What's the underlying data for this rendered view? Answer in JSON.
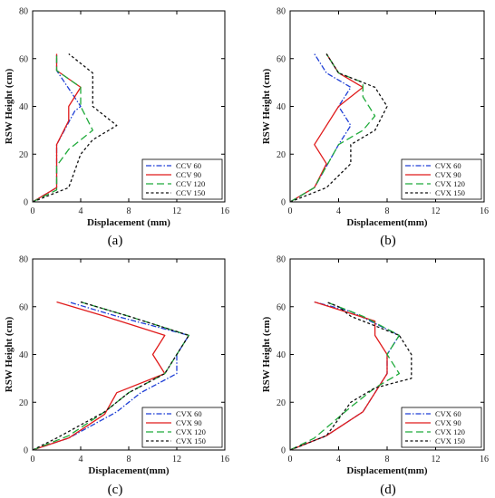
{
  "chart_data": [
    {
      "type": "line",
      "caption": "(a)",
      "xlabel": "Displacement (mm)",
      "ylabel": "RSW  Height (cm)",
      "xlim": [
        0,
        16
      ],
      "ylim": [
        0,
        80
      ],
      "xticks": [
        "0",
        "4",
        "8",
        "12",
        "16"
      ],
      "yticks": [
        "0",
        "20",
        "40",
        "60",
        "80"
      ],
      "legend_position": "bottom-right",
      "series": [
        {
          "name": "CCV 60",
          "color": "#1f3fd6",
          "dash": "dashdot",
          "points": [
            [
              0,
              0
            ],
            [
              2,
              6
            ],
            [
              2,
              24
            ],
            [
              3.5,
              38
            ],
            [
              4,
              40
            ],
            [
              2,
              55
            ],
            [
              2,
              62
            ]
          ]
        },
        {
          "name": "CCV 90",
          "color": "#e01b1b",
          "dash": "solid",
          "points": [
            [
              0,
              0
            ],
            [
              2,
              6
            ],
            [
              2,
              24
            ],
            [
              3,
              34
            ],
            [
              3,
              40
            ],
            [
              4,
              48
            ],
            [
              2,
              55
            ],
            [
              2,
              62
            ]
          ]
        },
        {
          "name": "CCV 120",
          "color": "#1faa3a",
          "dash": "longdash",
          "points": [
            [
              0,
              0
            ],
            [
              2,
              5
            ],
            [
              2,
              15
            ],
            [
              3,
              22
            ],
            [
              5,
              30
            ],
            [
              4,
              40
            ],
            [
              4,
              48
            ],
            [
              2,
              55
            ],
            [
              2,
              62
            ]
          ]
        },
        {
          "name": "CCV 150",
          "color": "#111111",
          "dash": "shortdash",
          "points": [
            [
              0,
              0
            ],
            [
              3,
              6
            ],
            [
              4,
              20
            ],
            [
              5,
              26
            ],
            [
              7,
              32
            ],
            [
              5,
              40
            ],
            [
              5,
              54
            ],
            [
              3,
              62
            ]
          ]
        }
      ]
    },
    {
      "type": "line",
      "caption": "(b)",
      "xlabel": "Displacement(mm)",
      "ylabel": "RSW  Height (cm)",
      "xlim": [
        0,
        16
      ],
      "ylim": [
        0,
        80
      ],
      "xticks": [
        "0",
        "4",
        "8",
        "12",
        "16"
      ],
      "yticks": [
        "0",
        "20",
        "40",
        "60",
        "80"
      ],
      "legend_position": "bottom-right",
      "series": [
        {
          "name": "CVX 60",
          "color": "#1f3fd6",
          "dash": "dashdot",
          "points": [
            [
              0,
              0
            ],
            [
              2,
              6
            ],
            [
              4,
              24
            ],
            [
              5,
              32
            ],
            [
              4,
              40
            ],
            [
              5,
              48
            ],
            [
              3,
              54
            ],
            [
              2,
              62
            ]
          ]
        },
        {
          "name": "CVX 90",
          "color": "#e01b1b",
          "dash": "solid",
          "points": [
            [
              0,
              0
            ],
            [
              2,
              6
            ],
            [
              3,
              16
            ],
            [
              2,
              24
            ],
            [
              4,
              40
            ],
            [
              6,
              48
            ],
            [
              4,
              54
            ],
            [
              3,
              62
            ]
          ]
        },
        {
          "name": "CVX 120",
          "color": "#1faa3a",
          "dash": "longdash",
          "points": [
            [
              0,
              0
            ],
            [
              2,
              6
            ],
            [
              4,
              24
            ],
            [
              6,
              30
            ],
            [
              7,
              36
            ],
            [
              6,
              44
            ],
            [
              6,
              50
            ],
            [
              4,
              54
            ],
            [
              3,
              62
            ]
          ]
        },
        {
          "name": "CVX 150",
          "color": "#111111",
          "dash": "shortdash",
          "points": [
            [
              0,
              0
            ],
            [
              3,
              6
            ],
            [
              5,
              16
            ],
            [
              5,
              24
            ],
            [
              7,
              30
            ],
            [
              8,
              40
            ],
            [
              7,
              48
            ],
            [
              4,
              54
            ],
            [
              3,
              62
            ]
          ]
        }
      ]
    },
    {
      "type": "line",
      "caption": "(c)",
      "xlabel": "Displacement(mm)",
      "ylabel": "RSW Height (cm)",
      "xlim": [
        0,
        16
      ],
      "ylim": [
        0,
        80
      ],
      "xticks": [
        "0",
        "4",
        "8",
        "12",
        "16"
      ],
      "yticks": [
        "0",
        "20",
        "40",
        "60",
        "80"
      ],
      "legend_position": "bottom-right",
      "series": [
        {
          "name": "CVX 60",
          "color": "#1f3fd6",
          "dash": "dashdot",
          "points": [
            [
              0,
              0
            ],
            [
              3,
              5
            ],
            [
              7,
              16
            ],
            [
              9,
              24
            ],
            [
              12,
              32
            ],
            [
              12,
              40
            ],
            [
              13,
              48
            ],
            [
              7,
              56
            ],
            [
              3,
              62
            ]
          ]
        },
        {
          "name": "CVX 90",
          "color": "#e01b1b",
          "dash": "solid",
          "points": [
            [
              0,
              0
            ],
            [
              3,
              5
            ],
            [
              6,
              15
            ],
            [
              7,
              24
            ],
            [
              11,
              32
            ],
            [
              10,
              40
            ],
            [
              11,
              48
            ],
            [
              6,
              56
            ],
            [
              2,
              62
            ]
          ]
        },
        {
          "name": "CVX 120",
          "color": "#1faa3a",
          "dash": "longdash",
          "points": [
            [
              0,
              0
            ],
            [
              3,
              6
            ],
            [
              6,
              16
            ],
            [
              8,
              24
            ],
            [
              11,
              32
            ],
            [
              12,
              40
            ],
            [
              13,
              48
            ],
            [
              8,
              56
            ],
            [
              4,
              62
            ]
          ]
        },
        {
          "name": "CVX 150",
          "color": "#111111",
          "dash": "shortdash",
          "points": [
            [
              0,
              0
            ],
            [
              2,
              5
            ],
            [
              6,
              16
            ],
            [
              8,
              24
            ],
            [
              11,
              32
            ],
            [
              12,
              40
            ],
            [
              13,
              48
            ],
            [
              8,
              56
            ],
            [
              4,
              62
            ]
          ]
        }
      ]
    },
    {
      "type": "line",
      "caption": "(d)",
      "xlabel": "Displacement(mm)",
      "ylabel": "RSW  Height (cm)",
      "xlim": [
        0,
        16
      ],
      "ylim": [
        0,
        80
      ],
      "xticks": [
        "0",
        "4",
        "8",
        "12",
        "16"
      ],
      "yticks": [
        "0",
        "20",
        "40",
        "60",
        "80"
      ],
      "legend_position": "bottom-right",
      "series": [
        {
          "name": "CVX 60",
          "color": "#1f3fd6",
          "dash": "dashdot",
          "points": [
            [
              0,
              0
            ],
            [
              3,
              6
            ],
            [
              6,
              16
            ],
            [
              8,
              32
            ],
            [
              8,
              40
            ],
            [
              9,
              48
            ],
            [
              5,
              58
            ],
            [
              2,
              62
            ]
          ]
        },
        {
          "name": "CVX 90",
          "color": "#e01b1b",
          "dash": "solid",
          "points": [
            [
              0,
              0
            ],
            [
              3,
              6
            ],
            [
              6,
              16
            ],
            [
              8,
              32
            ],
            [
              8,
              40
            ],
            [
              7,
              48
            ],
            [
              7,
              54
            ],
            [
              2,
              62
            ]
          ]
        },
        {
          "name": "CVX 120",
          "color": "#1faa3a",
          "dash": "longdash",
          "points": [
            [
              0,
              0
            ],
            [
              2,
              5
            ],
            [
              5,
              18
            ],
            [
              7,
              26
            ],
            [
              9,
              32
            ],
            [
              8,
              40
            ],
            [
              9,
              48
            ],
            [
              6,
              56
            ],
            [
              3,
              62
            ]
          ]
        },
        {
          "name": "CVX 150",
          "color": "#111111",
          "dash": "shortdash",
          "points": [
            [
              0,
              0
            ],
            [
              3,
              6
            ],
            [
              5,
              20
            ],
            [
              7,
              26
            ],
            [
              10,
              30
            ],
            [
              10,
              40
            ],
            [
              9,
              48
            ],
            [
              5,
              56
            ],
            [
              4,
              60
            ],
            [
              3,
              62
            ]
          ]
        }
      ]
    }
  ]
}
